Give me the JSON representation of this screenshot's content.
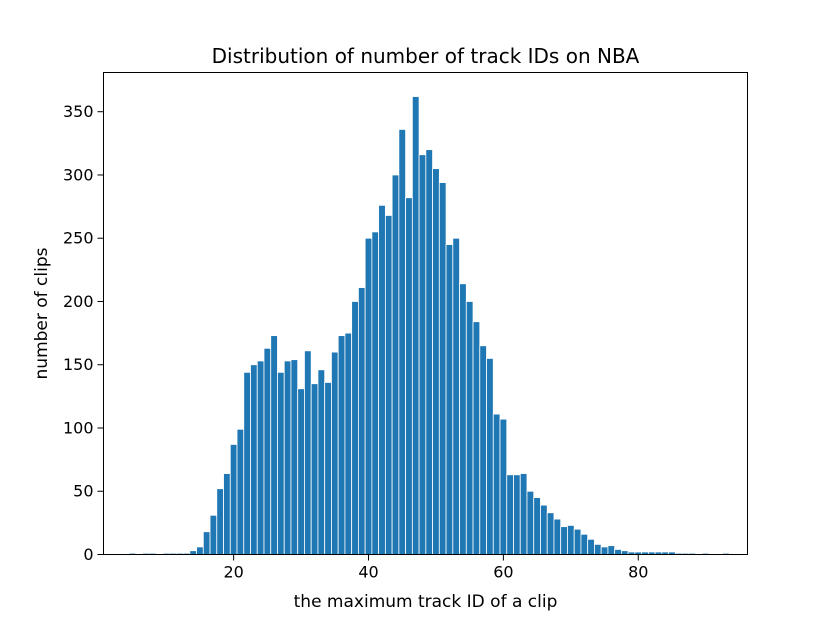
{
  "chart_data": {
    "type": "bar",
    "title": "Distribution of number of track IDs on NBA",
    "xlabel": "the maximum track ID of a clip",
    "ylabel": "number of clips",
    "xlim": [
      0.7,
      96.2
    ],
    "ylim": [
      0,
      381
    ],
    "xticks": [
      20,
      40,
      60,
      80
    ],
    "yticks": [
      0,
      50,
      100,
      150,
      200,
      250,
      300,
      350
    ],
    "bar_color": "#1f77b4",
    "grid": false,
    "x": [
      5,
      7,
      8,
      10,
      11,
      12,
      13,
      14,
      15,
      16,
      17,
      18,
      19,
      20,
      21,
      22,
      23,
      24,
      25,
      26,
      27,
      28,
      29,
      30,
      31,
      32,
      33,
      34,
      35,
      36,
      37,
      38,
      39,
      40,
      41,
      42,
      43,
      44,
      45,
      46,
      47,
      48,
      49,
      50,
      51,
      52,
      53,
      54,
      55,
      56,
      57,
      58,
      59,
      60,
      61,
      62,
      63,
      64,
      65,
      66,
      67,
      68,
      69,
      70,
      71,
      72,
      73,
      74,
      75,
      76,
      77,
      78,
      79,
      80,
      81,
      82,
      83,
      84,
      85,
      86,
      87,
      88,
      90,
      93
    ],
    "values": [
      1,
      1,
      1,
      1,
      1,
      1,
      1,
      3,
      6,
      18,
      31,
      52,
      64,
      87,
      99,
      144,
      150,
      153,
      163,
      173,
      144,
      153,
      154,
      131,
      161,
      135,
      146,
      136,
      160,
      173,
      175,
      200,
      211,
      250,
      255,
      276,
      268,
      300,
      336,
      282,
      362,
      316,
      320,
      305,
      294,
      245,
      250,
      214,
      200,
      184,
      165,
      155,
      111,
      107,
      63,
      63,
      64,
      50,
      45,
      39,
      33,
      28,
      22,
      23,
      20,
      16,
      12,
      8,
      6,
      7,
      4,
      3,
      2,
      2,
      2,
      2,
      2,
      2,
      2,
      1,
      1,
      1,
      1,
      1
    ]
  }
}
